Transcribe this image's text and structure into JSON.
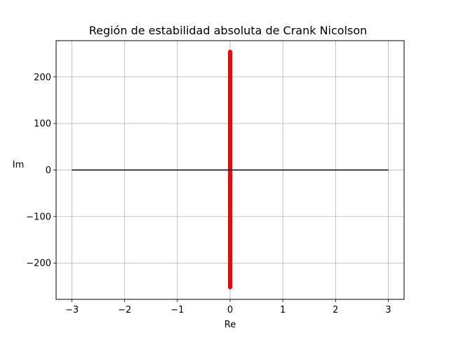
{
  "chart_data": {
    "type": "line",
    "title": "Región de estabilidad absoluta de Crank Nicolson",
    "xlabel": "Re",
    "ylabel": "Im",
    "xlim": [
      -3.3,
      3.3
    ],
    "ylim": [
      -278,
      278
    ],
    "grid": true,
    "x_ticks": [
      -3,
      -2,
      -1,
      0,
      1,
      2,
      3
    ],
    "x_tick_labels": [
      "−3",
      "−2",
      "−1",
      "0",
      "1",
      "2",
      "3"
    ],
    "y_ticks": [
      -200,
      -100,
      0,
      100,
      200
    ],
    "y_tick_labels": [
      "−200",
      "−100",
      "0",
      "100",
      "200"
    ],
    "series": [
      {
        "color": "#ff0000",
        "x": [
          0,
          0
        ],
        "y": [
          -252,
          254
        ]
      },
      {
        "color": "#000000",
        "x": [
          -3,
          3
        ],
        "y": [
          0,
          0
        ]
      }
    ]
  }
}
